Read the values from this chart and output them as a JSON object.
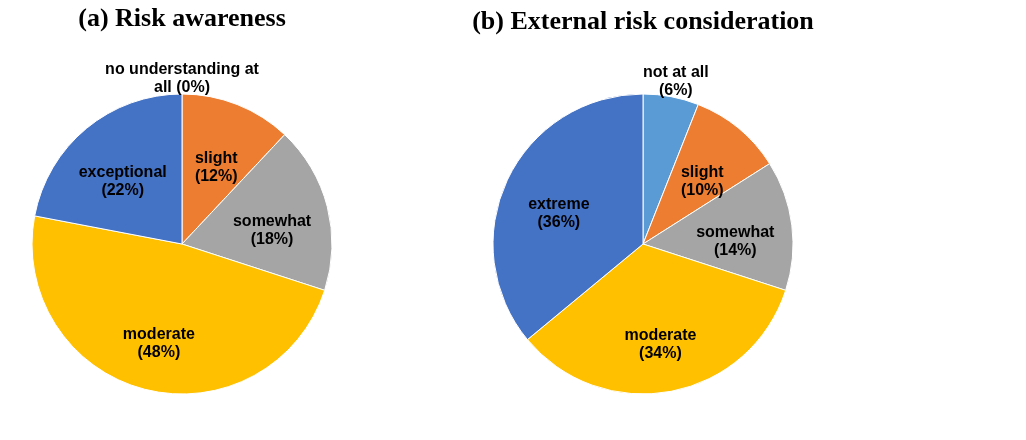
{
  "chart_data": [
    {
      "type": "pie",
      "title": "(a) Risk awareness",
      "categories": [
        "no understanding at all",
        "slight",
        "somewhat",
        "moderate",
        "exceptional"
      ],
      "values": [
        0,
        12,
        18,
        48,
        22
      ],
      "value_labels": [
        "(0%)",
        "(12%)",
        "(18%)",
        "(48%)",
        "(22%)"
      ],
      "colors": [
        "#5b9bd5",
        "#ed7d31",
        "#a5a5a5",
        "#ffc000",
        "#4472c4"
      ]
    },
    {
      "type": "pie",
      "title": "(b) External risk consideration",
      "categories": [
        "not at all",
        "slight",
        "somewhat",
        "moderate",
        "extreme"
      ],
      "values": [
        6,
        10,
        14,
        34,
        36
      ],
      "value_labels": [
        "(6%)",
        "(10%)",
        "(14%)",
        "(34%)",
        "(36%)"
      ],
      "colors": [
        "#5b9bd5",
        "#ed7d31",
        "#a5a5a5",
        "#ffc000",
        "#4472c4"
      ]
    }
  ]
}
